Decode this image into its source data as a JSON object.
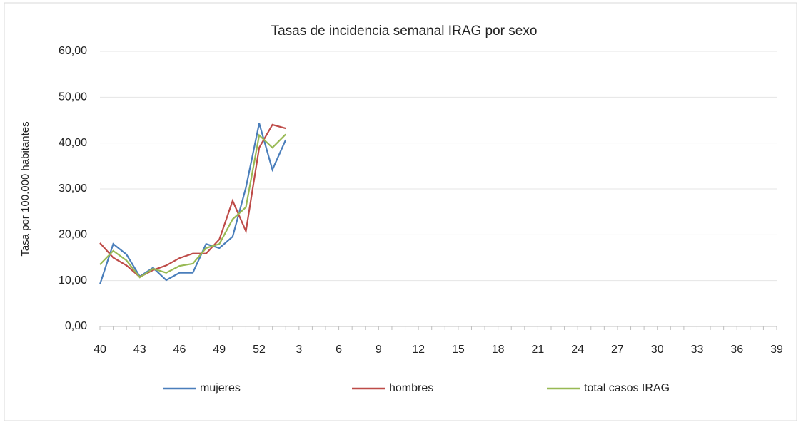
{
  "chart_data": {
    "type": "line",
    "title": "Tasas de incidencia semanal IRAG por sexo",
    "y_label": "Tasa por 100.000 habitantes",
    "categories": [
      "40",
      null,
      null,
      "43",
      null,
      null,
      "46",
      null,
      null,
      "49",
      null,
      null,
      "52",
      null,
      null,
      "3",
      null,
      null,
      "6",
      null,
      null,
      "9",
      null,
      null,
      "12",
      null,
      null,
      "15",
      null,
      null,
      "18",
      null,
      null,
      "21",
      null,
      null,
      "24",
      null,
      null,
      "27",
      null,
      null,
      "30",
      null,
      null,
      "33",
      null,
      null,
      "36",
      null,
      null,
      "39"
    ],
    "series": [
      {
        "name": "mujeres",
        "color": "#4a7ebb",
        "values": [
          9.2,
          18.0,
          15.7,
          10.9,
          12.8,
          10.1,
          11.7,
          11.7,
          18.0,
          17.1,
          19.6,
          30.3,
          44.3,
          34.2,
          40.7,
          null,
          null,
          null,
          null,
          null,
          null,
          null,
          null,
          null,
          null,
          null,
          null,
          null,
          null,
          null,
          null,
          null,
          null,
          null,
          null,
          null,
          null,
          null,
          null,
          null,
          null,
          null,
          null,
          null,
          null,
          null,
          null,
          null,
          null,
          null,
          null,
          null
        ]
      },
      {
        "name": "hombres",
        "color": "#be4b48",
        "values": [
          18.2,
          15.0,
          13.3,
          10.8,
          12.3,
          13.3,
          14.9,
          15.9,
          15.9,
          19.0,
          27.4,
          20.8,
          39.0,
          44.0,
          43.2,
          null,
          null,
          null,
          null,
          null,
          null,
          null,
          null,
          null,
          null,
          null,
          null,
          null,
          null,
          null,
          null,
          null,
          null,
          null,
          null,
          null,
          null,
          null,
          null,
          null,
          null,
          null,
          null,
          null,
          null,
          null,
          null,
          null,
          null,
          null,
          null,
          null
        ]
      },
      {
        "name": "total casos IRAG",
        "color": "#98b954",
        "values": [
          13.5,
          16.5,
          14.4,
          10.7,
          12.6,
          11.7,
          13.2,
          13.7,
          17.1,
          18.0,
          23.4,
          26.0,
          41.7,
          39.0,
          41.9,
          null,
          null,
          null,
          null,
          null,
          null,
          null,
          null,
          null,
          null,
          null,
          null,
          null,
          null,
          null,
          null,
          null,
          null,
          null,
          null,
          null,
          null,
          null,
          null,
          null,
          null,
          null,
          null,
          null,
          null,
          null,
          null,
          null,
          null,
          null,
          null,
          null
        ]
      }
    ],
    "ylim": [
      0,
      60
    ],
    "yticks": [
      {
        "value": 0,
        "label": "0,00"
      },
      {
        "value": 10,
        "label": "10,00"
      },
      {
        "value": 20,
        "label": "20,00"
      },
      {
        "value": 30,
        "label": "30,00"
      },
      {
        "value": 40,
        "label": "40,00"
      },
      {
        "value": 50,
        "label": "50,00"
      },
      {
        "value": 60,
        "label": "60,00"
      }
    ],
    "grid": true,
    "legend": "bottom"
  }
}
